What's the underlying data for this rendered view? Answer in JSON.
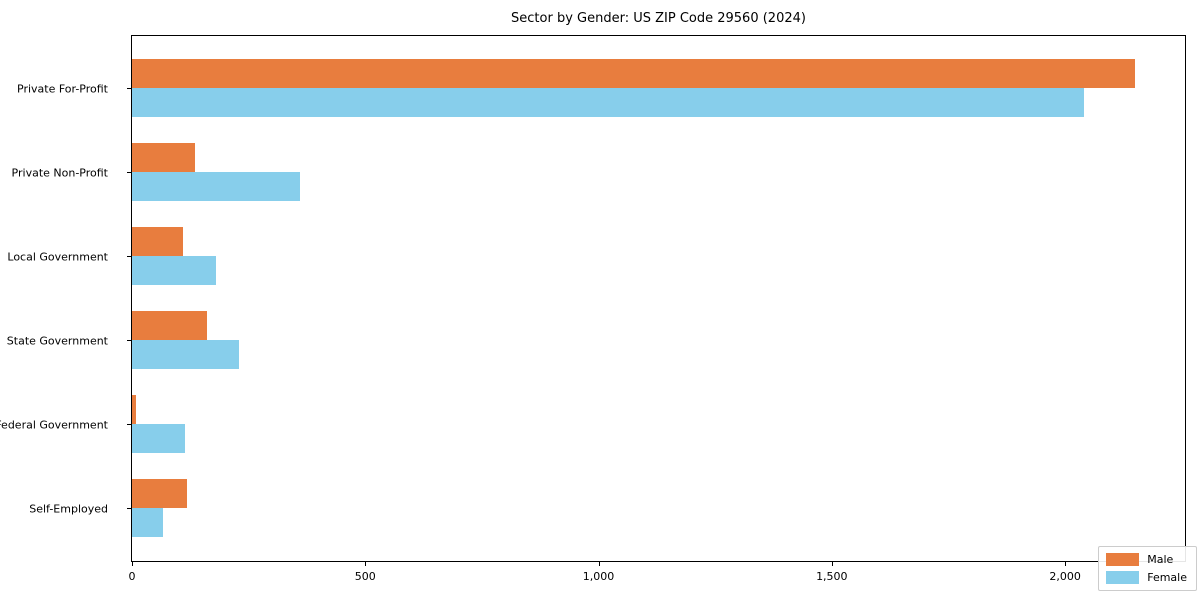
{
  "title": "Sector by Gender: US ZIP Code 29560 (2024)",
  "chart_data": {
    "type": "bar",
    "orientation": "horizontal",
    "title": "Sector by Gender: US ZIP Code 29560 (2024)",
    "categories": [
      "Private For-Profit",
      "Private Non-Profit",
      "Local Government",
      "State Government",
      "Federal Government",
      "Self-Employed"
    ],
    "series": [
      {
        "name": "Male",
        "color": "#e87d3e",
        "values": [
          2150,
          135,
          110,
          160,
          8,
          118
        ]
      },
      {
        "name": "Female",
        "color": "#87ceeb",
        "values": [
          2040,
          360,
          180,
          230,
          113,
          66
        ]
      }
    ],
    "xlabel": "",
    "ylabel": "",
    "xlim": [
      0,
      2257
    ],
    "xticks": [
      0,
      500,
      1000,
      1500,
      2000
    ],
    "xtick_labels": [
      "0",
      "500",
      "1,000",
      "1,500",
      "2,000"
    ],
    "grid": false,
    "legend_position": "lower right"
  },
  "colors": {
    "male": "#e87d3e",
    "female": "#87ceeb",
    "spine": "#000000",
    "background": "#ffffff"
  }
}
